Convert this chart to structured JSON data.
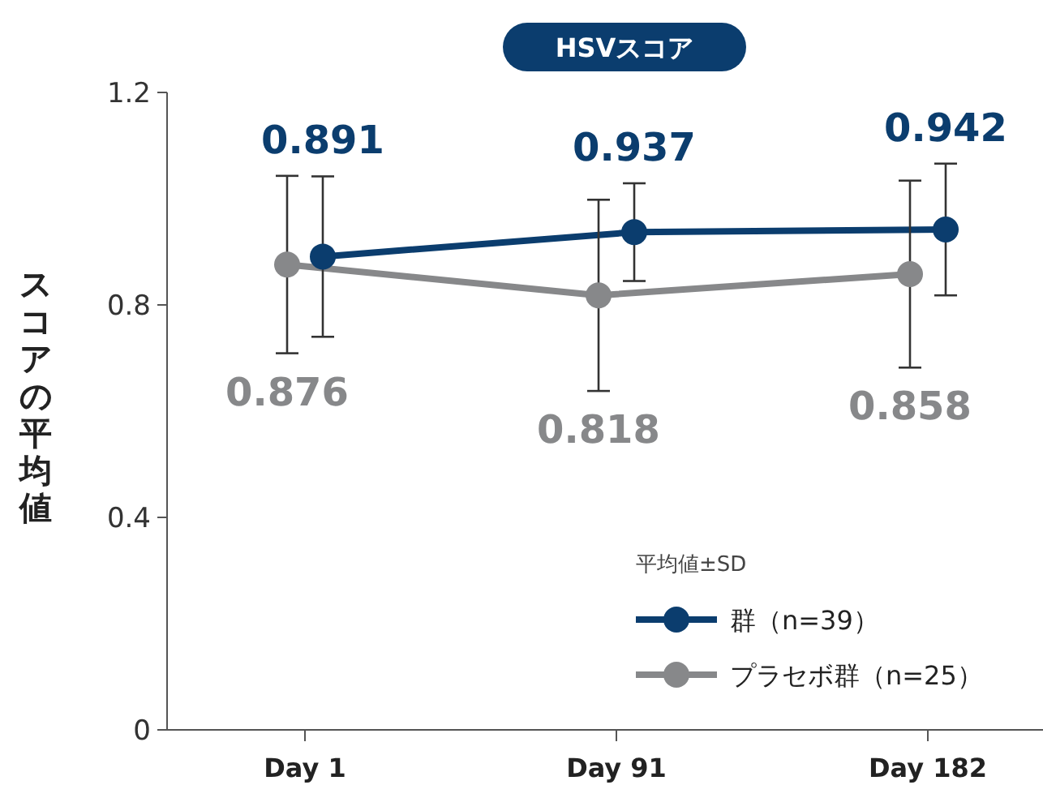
{
  "chart_data": {
    "type": "line",
    "title": "HSVスコア",
    "ylabel": "スコアの平均値",
    "legend_title": "平均値±SD",
    "categories": [
      "Day 1",
      "Day 91",
      "Day 182"
    ],
    "series": [
      {
        "name": "群（n=39）",
        "color": "#0b3d6e",
        "values": [
          0.891,
          0.937,
          0.942
        ],
        "errors": [
          0.151,
          0.092,
          0.124
        ]
      },
      {
        "name": "プラセボ群（n=25）",
        "color": "#87888a",
        "values": [
          0.876,
          0.818,
          0.858
        ],
        "errors": [
          0.167,
          0.18,
          0.176
        ]
      }
    ],
    "ylim": [
      0,
      1.2
    ],
    "yticks": [
      0,
      0.4,
      0.8,
      1.2
    ],
    "grid": false,
    "legend": "bottom right",
    "marker": "circle",
    "line_style": "solid",
    "data_labels": true
  }
}
